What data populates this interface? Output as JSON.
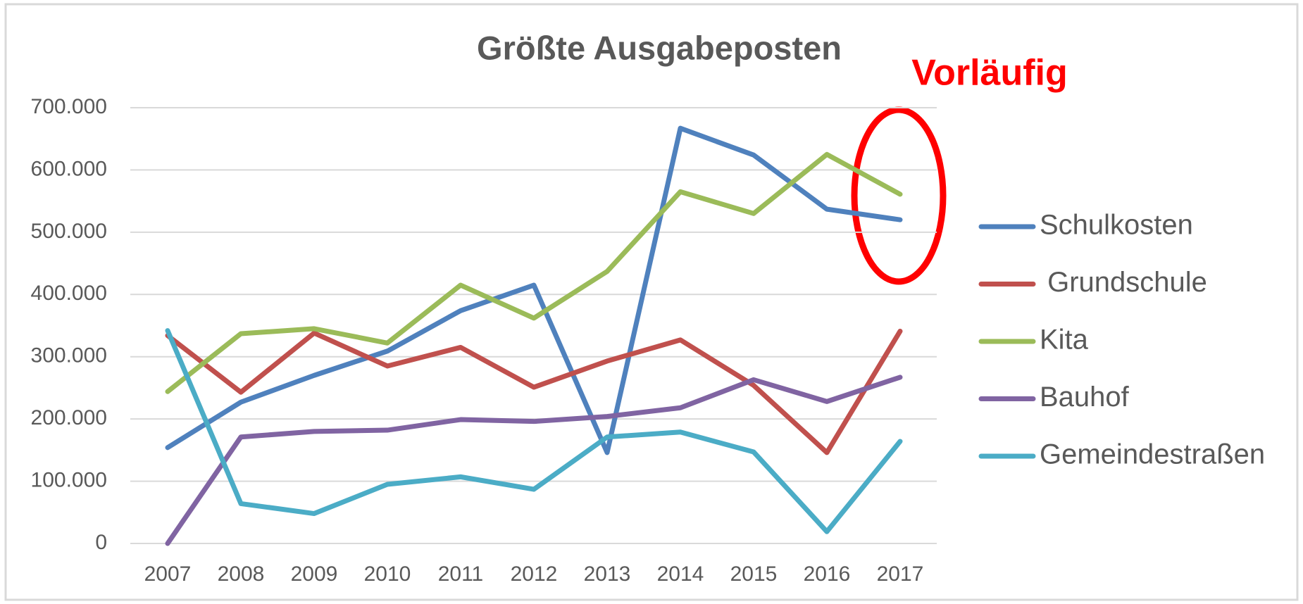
{
  "chart_data": {
    "type": "line",
    "title": "Größte Ausgabeposten",
    "annotation": "Vorläufig",
    "categories": [
      "2007",
      "2008",
      "2009",
      "2010",
      "2011",
      "2012",
      "2013",
      "2014",
      "2015",
      "2016",
      "2017"
    ],
    "ylim": [
      0,
      700000
    ],
    "yticks": [
      0,
      {
        "value": 100000,
        "label": "100.000"
      },
      {
        "value": 200000,
        "label": "200.000"
      },
      {
        "value": 300000,
        "label": "300.000"
      },
      {
        "value": 400000,
        "label": "400.000"
      },
      {
        "value": 500000,
        "label": "500.000"
      },
      {
        "value": 600000,
        "label": "600.000"
      },
      {
        "value": 700000,
        "label": "700.000"
      }
    ],
    "grid": true,
    "series": [
      {
        "name": "Schulkosten",
        "color": "#4f81bd",
        "values": [
          154000,
          227000,
          270000,
          309000,
          374000,
          415000,
          146000,
          667000,
          624000,
          537000,
          520000
        ]
      },
      {
        "name": " Grundschule",
        "color": "#c0504d",
        "values": [
          334000,
          243000,
          338000,
          285000,
          315000,
          251000,
          293000,
          327000,
          254000,
          146000,
          341000
        ]
      },
      {
        "name": "Kita",
        "color": "#9bbb59",
        "values": [
          244000,
          337000,
          345000,
          322000,
          415000,
          362000,
          437000,
          565000,
          530000,
          625000,
          561000
        ]
      },
      {
        "name": "Bauhof",
        "color": "#8064a2",
        "values": [
          0,
          171000,
          180000,
          182000,
          199000,
          196000,
          204000,
          218000,
          263000,
          228000,
          267000
        ]
      },
      {
        "name": "Gemeindestraßen",
        "color": "#4bacc6",
        "values": [
          342000,
          64000,
          48000,
          95000,
          107000,
          87000,
          171000,
          179000,
          147000,
          19000,
          164000
        ]
      }
    ]
  }
}
